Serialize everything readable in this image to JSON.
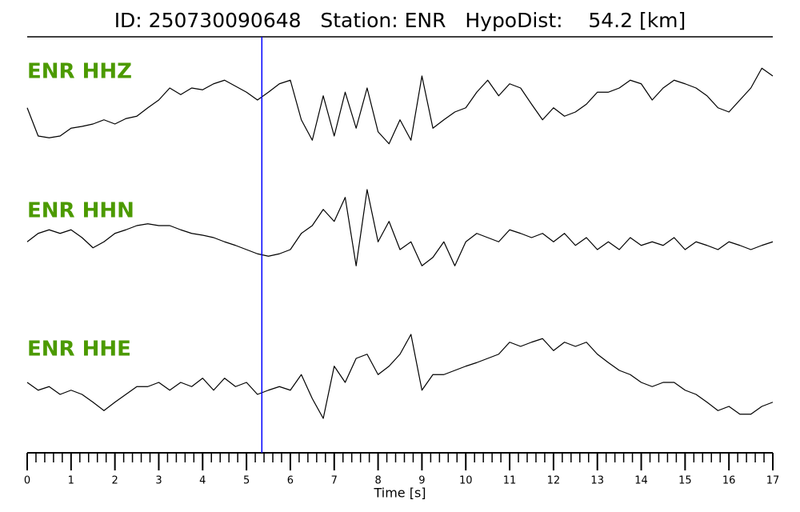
{
  "chart_data": {
    "type": "waveform",
    "title": "ID: 250730090648   Station: ENR   HypoDist:    54.2 [km]",
    "x_label": "Time [s]",
    "xlim": [
      0,
      17
    ],
    "xticks": [
      0,
      1,
      2,
      3,
      4,
      5,
      6,
      7,
      8,
      9,
      10,
      11,
      12,
      13,
      14,
      15,
      16,
      17
    ],
    "xminorticks": [
      0.2,
      0.4,
      0.6,
      0.8,
      1.2,
      1.4,
      1.6,
      1.8,
      2.2,
      2.4,
      2.6,
      2.8,
      3.2,
      3.4,
      3.6,
      3.8,
      4.2,
      4.4,
      4.6,
      4.8,
      5.2,
      5.4,
      5.6,
      5.8,
      6.2,
      6.4,
      6.6,
      6.8,
      7.2,
      7.4,
      7.6,
      7.8,
      8.2,
      8.4,
      8.6,
      8.8,
      9.2,
      9.4,
      9.6,
      9.8,
      10.2,
      10.4,
      10.6,
      10.8,
      11.2,
      11.4,
      11.6,
      11.8,
      12.2,
      12.4,
      12.6,
      12.8,
      13.2,
      13.4,
      13.6,
      13.8,
      14.2,
      14.4,
      14.6,
      14.8,
      15.2,
      15.4,
      15.6,
      15.8,
      16.2,
      16.4,
      16.6,
      16.8
    ],
    "ylim": [
      -1,
      1
    ],
    "pick_time": 5.35,
    "pick_color": "#0000ff",
    "label_color": "#4c9a00",
    "x": [
      0,
      0.25,
      0.5,
      0.75,
      1,
      1.25,
      1.5,
      1.75,
      2,
      2.25,
      2.5,
      2.75,
      3,
      3.25,
      3.5,
      3.75,
      4,
      4.25,
      4.5,
      4.75,
      5,
      5.25,
      5.5,
      5.75,
      6,
      6.25,
      6.5,
      6.75,
      7,
      7.25,
      7.5,
      7.75,
      8,
      8.25,
      8.5,
      8.75,
      9,
      9.25,
      9.5,
      9.75,
      10,
      10.25,
      10.5,
      10.75,
      11,
      11.25,
      11.5,
      11.75,
      12,
      12.25,
      12.5,
      12.75,
      13,
      13.25,
      13.5,
      13.75,
      14,
      14.25,
      14.5,
      14.75,
      15,
      15.25,
      15.5,
      15.75,
      16,
      16.25,
      16.5,
      16.75,
      17
    ],
    "series": [
      {
        "name": "ENR HHZ",
        "color": "#000000",
        "values": [
          0.07,
          -0.4,
          -0.43,
          -0.4,
          -0.27,
          -0.24,
          -0.2,
          -0.13,
          -0.2,
          -0.11,
          -0.07,
          0.07,
          0.2,
          0.4,
          0.29,
          0.4,
          0.37,
          0.47,
          0.53,
          0.43,
          0.33,
          0.2,
          0.33,
          0.47,
          0.53,
          -0.13,
          -0.47,
          0.27,
          -0.4,
          0.33,
          -0.27,
          0.4,
          -0.33,
          -0.53,
          -0.13,
          -0.47,
          0.6,
          -0.27,
          -0.13,
          0,
          0.07,
          0.33,
          0.53,
          0.27,
          0.47,
          0.4,
          0.13,
          -0.13,
          0.07,
          -0.07,
          0,
          0.13,
          0.33,
          0.33,
          0.4,
          0.53,
          0.47,
          0.2,
          0.4,
          0.53,
          0.47,
          0.4,
          0.27,
          0.07,
          0,
          0.2,
          0.4,
          0.73,
          0.6
        ]
      },
      {
        "name": "ENR HHN",
        "color": "#000000",
        "values": [
          -0.07,
          0.07,
          0.13,
          0.07,
          0.13,
          0,
          -0.17,
          -0.07,
          0.07,
          0.13,
          0.2,
          0.23,
          0.2,
          0.2,
          0.13,
          0.07,
          0.04,
          0,
          -0.07,
          -0.13,
          -0.2,
          -0.27,
          -0.31,
          -0.27,
          -0.2,
          0.07,
          0.2,
          0.47,
          0.27,
          0.67,
          -0.47,
          0.8,
          -0.07,
          0.27,
          -0.2,
          -0.07,
          -0.47,
          -0.33,
          -0.07,
          -0.47,
          -0.07,
          0.07,
          0,
          -0.07,
          0.13,
          0.07,
          0,
          0.07,
          -0.07,
          0.07,
          -0.13,
          0,
          -0.2,
          -0.07,
          -0.2,
          0,
          -0.13,
          -0.07,
          -0.13,
          0,
          -0.2,
          -0.07,
          -0.13,
          -0.2,
          -0.07,
          -0.13,
          -0.2,
          -0.13,
          -0.07
        ]
      },
      {
        "name": "ENR HHE",
        "color": "#000000",
        "values": [
          0,
          -0.13,
          -0.07,
          -0.2,
          -0.13,
          -0.2,
          -0.33,
          -0.47,
          -0.33,
          -0.2,
          -0.07,
          -0.07,
          0,
          -0.13,
          0,
          -0.07,
          0.07,
          -0.13,
          0.07,
          -0.07,
          0,
          -0.2,
          -0.13,
          -0.07,
          -0.13,
          0.13,
          -0.27,
          -0.6,
          0.27,
          0,
          0.4,
          0.47,
          0.13,
          0.27,
          0.47,
          0.8,
          -0.13,
          0.13,
          0.13,
          0.2,
          0.27,
          0.33,
          0.4,
          0.47,
          0.67,
          0.6,
          0.67,
          0.73,
          0.53,
          0.67,
          0.6,
          0.67,
          0.47,
          0.33,
          0.2,
          0.13,
          0,
          -0.07,
          0,
          0,
          -0.13,
          -0.2,
          -0.33,
          -0.47,
          -0.4,
          -0.53,
          -0.53,
          -0.4,
          -0.33
        ]
      }
    ]
  }
}
